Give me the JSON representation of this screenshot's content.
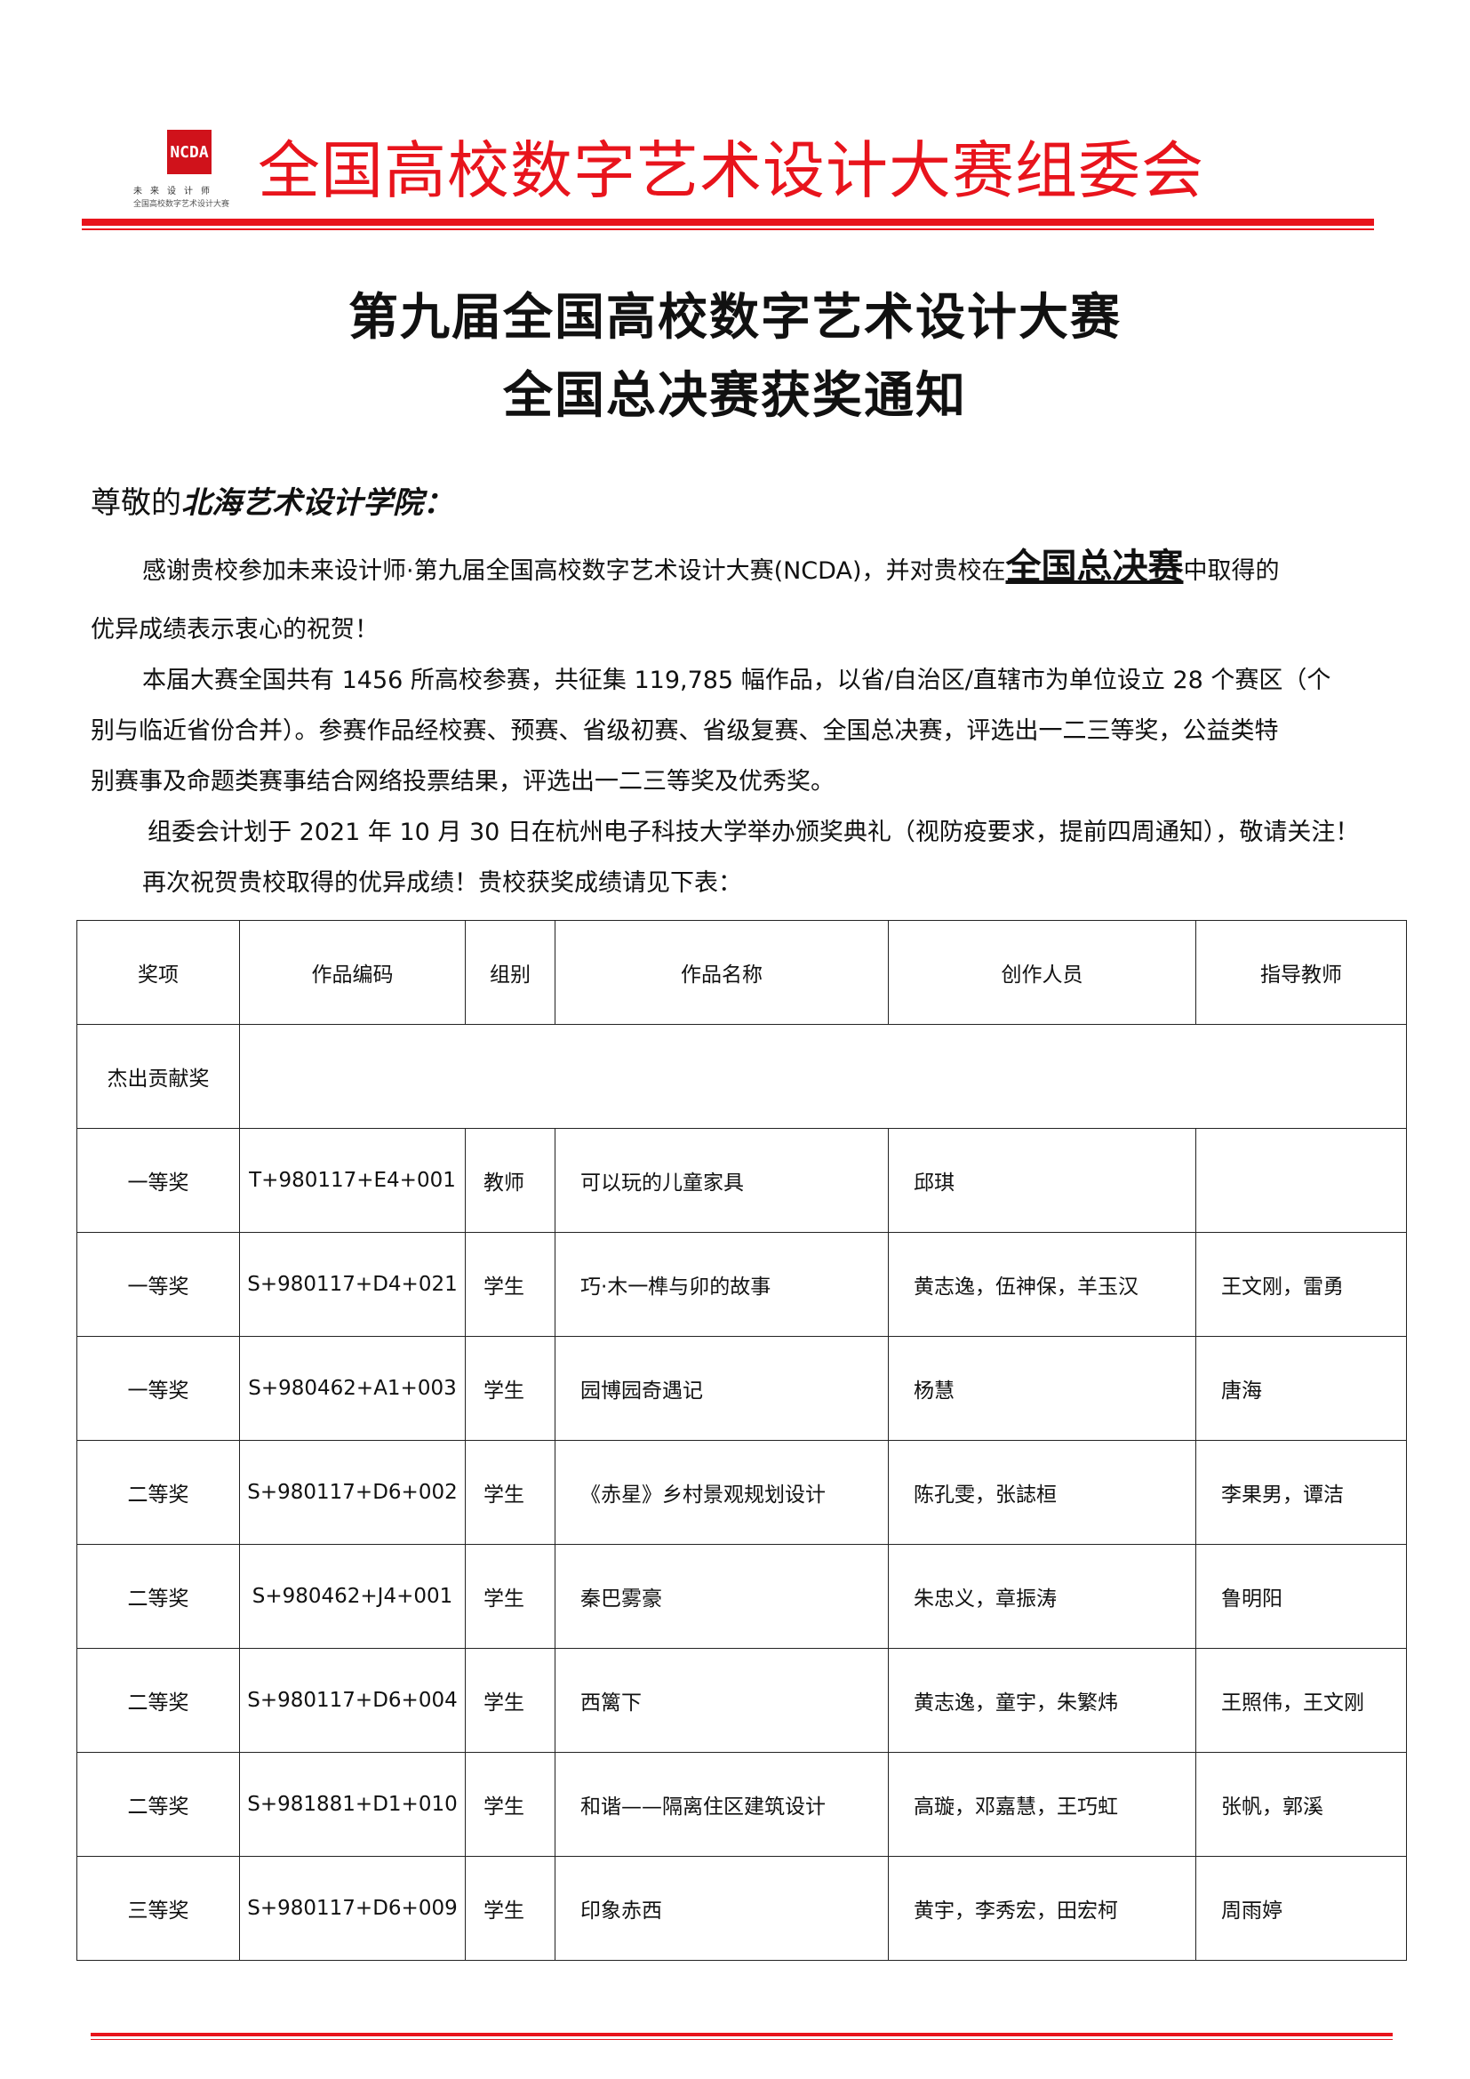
{
  "header": {
    "logo_mark": "NCDA",
    "logo_line1": "未来设计师",
    "logo_line2": "全国高校数字艺术设计大赛",
    "org_title": "全国高校数字艺术设计大赛组委会",
    "accent_color": "#e8141c"
  },
  "title": {
    "line1": "第九届全国高校数字艺术设计大赛",
    "line2": "全国总决赛获奖通知"
  },
  "salutation": {
    "prefix": "尊敬的",
    "school": "北海艺术设计学院："
  },
  "body": {
    "p1_before": "感谢贵校参加未来设计师·第九届全国高校数字艺术设计大赛(NCDA)，并对贵校在",
    "p1_highlight": "全国总决赛",
    "p1_after": "中取得的",
    "p1_line2": "优异成绩表示衷心的祝贺！",
    "p2_line1": "本届大赛全国共有 1456 所高校参赛，共征集 119,785 幅作品，以省/自治区/直辖市为单位设立 28 个赛区（个",
    "p2_line2": "别与临近省份合并）。参赛作品经校赛、预赛、省级初赛、省级复赛、全国总决赛，评选出一二三等奖，公益类特",
    "p2_line3": "别赛事及命题类赛事结合网络投票结果，评选出一二三等奖及优秀奖。",
    "p3": "组委会计划于 2021 年 10 月 30 日在杭州电子科技大学举办颁奖典礼（视防疫要求，提前四周通知），敬请关注！",
    "p4": "再次祝贺贵校取得的优异成绩！贵校获奖成绩请见下表："
  },
  "table": {
    "headers": [
      "奖项",
      "作品编码",
      "组别",
      "作品名称",
      "创作人员",
      "指导教师"
    ],
    "special_row": "杰出贡献奖",
    "rows": [
      {
        "award": "一等奖",
        "code": "T+980117+E4+001",
        "group": "教师",
        "work": "可以玩的儿童家具",
        "creators": "邱琪",
        "advisors": ""
      },
      {
        "award": "一等奖",
        "code": "S+980117+D4+021",
        "group": "学生",
        "work": "巧·木一榫与卯的故事",
        "creators": "黄志逸，伍神保，羊玉汉",
        "advisors": "王文刚，雷勇"
      },
      {
        "award": "一等奖",
        "code": "S+980462+A1+003",
        "group": "学生",
        "work": "园博园奇遇记",
        "creators": "杨慧",
        "advisors": "唐海"
      },
      {
        "award": "二等奖",
        "code": "S+980117+D6+002",
        "group": "学生",
        "work": "《赤星》乡村景观规划设计",
        "creators": "陈孔雯，张誌桓",
        "advisors": "李果男，谭洁"
      },
      {
        "award": "二等奖",
        "code": "S+980462+J4+001",
        "group": "学生",
        "work": "秦巴雾豪",
        "creators": "朱忠义，章振涛",
        "advisors": "鲁明阳"
      },
      {
        "award": "二等奖",
        "code": "S+980117+D6+004",
        "group": "学生",
        "work": "西篱下",
        "creators": "黄志逸，童宇，朱繁炜",
        "advisors": "王照伟，王文刚"
      },
      {
        "award": "二等奖",
        "code": "S+981881+D1+010",
        "group": "学生",
        "work": "和谐——隔离住区建筑设计",
        "creators": "高璇，邓嘉慧，王巧虹",
        "advisors": "张帆，郭溪"
      },
      {
        "award": "三等奖",
        "code": "S+980117+D6+009",
        "group": "学生",
        "work": "印象赤西",
        "creators": "黄宇，李秀宏，田宏柯",
        "advisors": "周雨婷"
      }
    ]
  }
}
